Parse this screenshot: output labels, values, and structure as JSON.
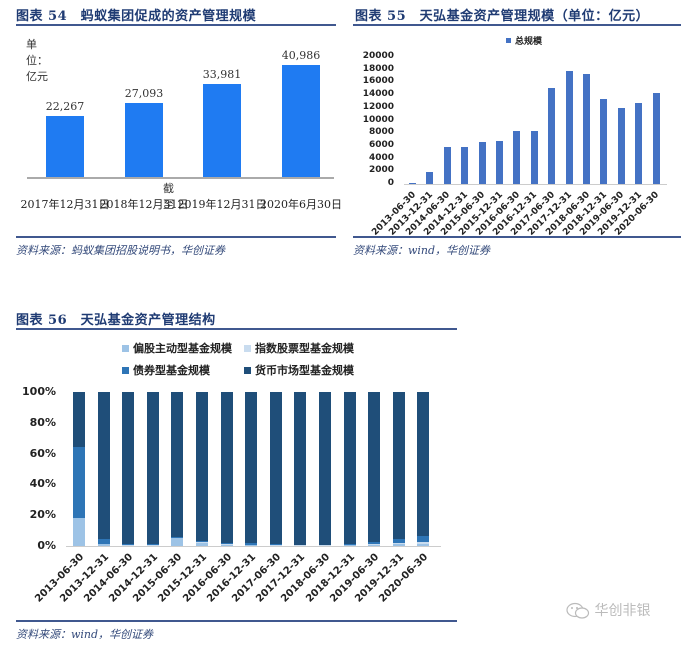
{
  "chart_data": [
    {
      "id": "fig54",
      "type": "bar",
      "title": "图表 54　蚂蚁集团促成的资产管理规模",
      "unit_label": "单位：亿元",
      "xlabel": "截至",
      "ylabel": "",
      "categories": [
        "2017年12月31日",
        "2018年12月31日",
        "2019年12月31日",
        "2020年6月30日"
      ],
      "values": [
        22267,
        27093,
        33981,
        40986
      ],
      "value_labels": [
        "22,267",
        "27,093",
        "33,981",
        "40,986"
      ],
      "bar_color": "#1f7bf2",
      "grid": false,
      "source": "资料来源：蚂蚁集团招股说明书，华创证券"
    },
    {
      "id": "fig55",
      "type": "bar",
      "title": "图表 55　天弘基金资产管理规模（单位：亿元）",
      "legend": [
        "总规模"
      ],
      "legend_position": "top",
      "xlabel": "",
      "ylabel": "",
      "ylim": [
        0,
        20000
      ],
      "yticks": [
        "20000",
        "18000",
        "16000",
        "14000",
        "12000",
        "10000",
        "8000",
        "6000",
        "4000",
        "2000",
        "0"
      ],
      "categories": [
        "2013-06-30",
        "2013-12-31",
        "2014-06-30",
        "2014-12-31",
        "2015-06-30",
        "2015-12-31",
        "2016-06-30",
        "2016-12-31",
        "2017-06-30",
        "2017-12-31",
        "2018-06-30",
        "2018-12-31",
        "2019-06-30",
        "2019-12-31",
        "2020-06-30"
      ],
      "series": [
        {
          "name": "总规模",
          "color": "#4472c4",
          "values": [
            100,
            1900,
            5800,
            5800,
            6600,
            6700,
            8400,
            8400,
            15100,
            17800,
            17300,
            13400,
            12000,
            12700,
            14300
          ]
        }
      ],
      "grid": false,
      "source": "资料来源：wind，华创证券"
    },
    {
      "id": "fig56",
      "type": "bar",
      "stacked": true,
      "percent": true,
      "title": "图表 56　天弘基金资产管理结构",
      "legend_position": "top",
      "ylim": [
        0,
        100
      ],
      "yticks": [
        "100%",
        "80%",
        "60%",
        "40%",
        "20%",
        "0%"
      ],
      "categories": [
        "2013-06-30",
        "2013-12-31",
        "2014-06-30",
        "2014-12-31",
        "2015-06-30",
        "2015-12-31",
        "2016-06-30",
        "2016-12-31",
        "2017-06-30",
        "2017-12-31",
        "2018-06-30",
        "2018-12-31",
        "2019-06-30",
        "2019-12-31",
        "2020-06-30"
      ],
      "series": [
        {
          "name": "偏股主动型基金规模",
          "color": "#9dc3e6",
          "values": [
            18,
            1,
            0.3,
            0.3,
            5,
            2,
            0.8,
            0.5,
            0.3,
            0.3,
            0.3,
            0.4,
            0.8,
            1,
            1.5
          ]
        },
        {
          "name": "指数股票型基金规模",
          "color": "#c9dcef",
          "values": [
            0.5,
            0.3,
            0.2,
            0.2,
            0.5,
            0.5,
            0.3,
            0.3,
            0.2,
            0.2,
            0.2,
            0.3,
            0.5,
            0.8,
            1
          ]
        },
        {
          "name": "债券型基金规模",
          "color": "#2e75b6",
          "values": [
            45.5,
            3,
            0.5,
            0.5,
            0.5,
            1,
            1,
            1,
            0.5,
            0.3,
            0.3,
            0.8,
            1.2,
            2.5,
            4
          ]
        },
        {
          "name": "货币市场型基金规模",
          "color": "#1f4e79",
          "values": [
            36,
            95.7,
            99,
            99,
            94,
            96.5,
            97.9,
            98.2,
            99,
            99.2,
            99.2,
            98.5,
            97.5,
            95.7,
            93.5
          ]
        }
      ],
      "legend_rows": [
        [
          "偏股主动型基金规模",
          "指数股票型基金规模"
        ],
        [
          "债券型基金规模",
          "货币市场型基金规模"
        ]
      ],
      "grid": false,
      "source": "资料来源：wind，华创证券"
    }
  ],
  "watermark": {
    "text": "华创非银",
    "icon": "wechat-icon"
  }
}
